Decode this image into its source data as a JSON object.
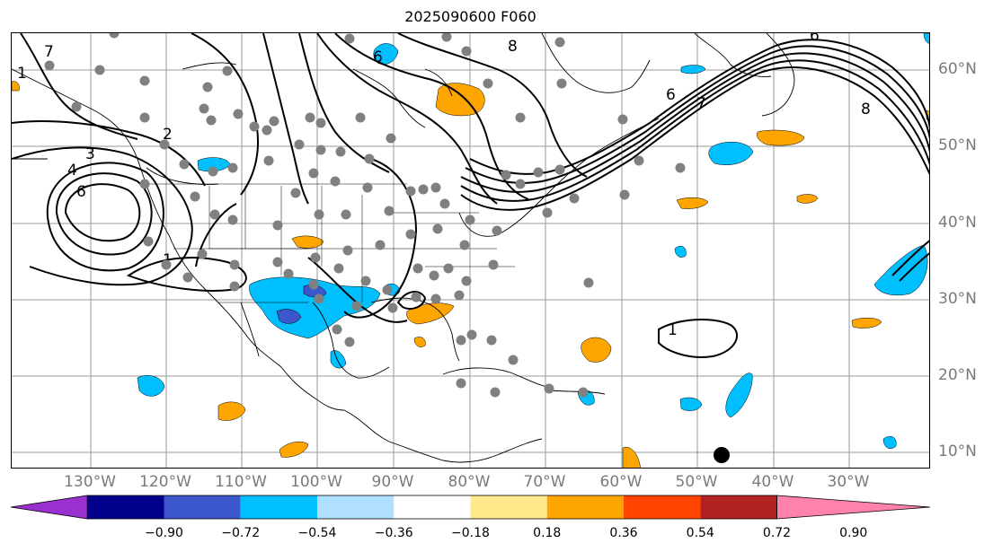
{
  "title": "2025090600 F060",
  "map": {
    "lon_labels": [
      "130°W",
      "120°W",
      "110°W",
      "100°W",
      "90°W",
      "80°W",
      "70°W",
      "60°W",
      "50°W",
      "40°W",
      "30°W"
    ],
    "lat_labels": [
      "60°N",
      "50°N",
      "40°N",
      "30°N",
      "20°N",
      "10°N"
    ],
    "contour_labels": [
      "1",
      "2",
      "3",
      "4",
      "6",
      "6",
      "7",
      "8",
      "6",
      "1",
      "6",
      "7",
      "8",
      "1"
    ],
    "features": {
      "contour_color": "#000000",
      "station_marker_color": "#808080",
      "grid_color": "#9a9a9a"
    }
  },
  "colorbar": {
    "ticks": [
      "−0.90",
      "−0.72",
      "−0.54",
      "−0.36",
      "−0.18",
      "0.18",
      "0.36",
      "0.54",
      "0.72",
      "0.90"
    ],
    "colors": [
      "#9b30d0",
      "#00008b",
      "#3c56cc",
      "#00bfff",
      "#b0e0ff",
      "#ffffff",
      "#ffe98a",
      "#ffa500",
      "#ff4500",
      "#b22222",
      "#ff82ab"
    ],
    "under_color": "#9b30d0",
    "over_color": "#ff82ab"
  }
}
